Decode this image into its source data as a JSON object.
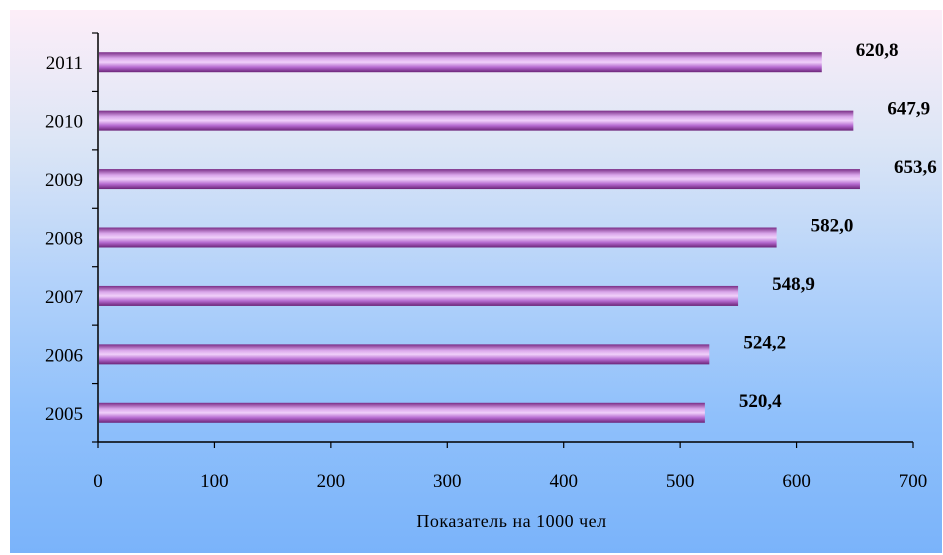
{
  "chart_data": {
    "type": "bar",
    "orientation": "horizontal",
    "categories": [
      "2005",
      "2006",
      "2007",
      "2008",
      "2009",
      "2010",
      "2011"
    ],
    "values": [
      520.4,
      524.2,
      548.9,
      582.0,
      653.6,
      647.9,
      620.8
    ],
    "value_labels": [
      "520,4",
      "524,2",
      "548,9",
      "582,0",
      "653,6",
      "647,9",
      "620,8"
    ],
    "xlabel": "Показатель на 1000 чел",
    "ylabel": "",
    "xlim": [
      0,
      700
    ],
    "xticks": [
      "0",
      "100",
      "200",
      "300",
      "400",
      "500",
      "600",
      "700"
    ],
    "grid": false,
    "legend": "none",
    "bar_color": "#b060c8"
  }
}
